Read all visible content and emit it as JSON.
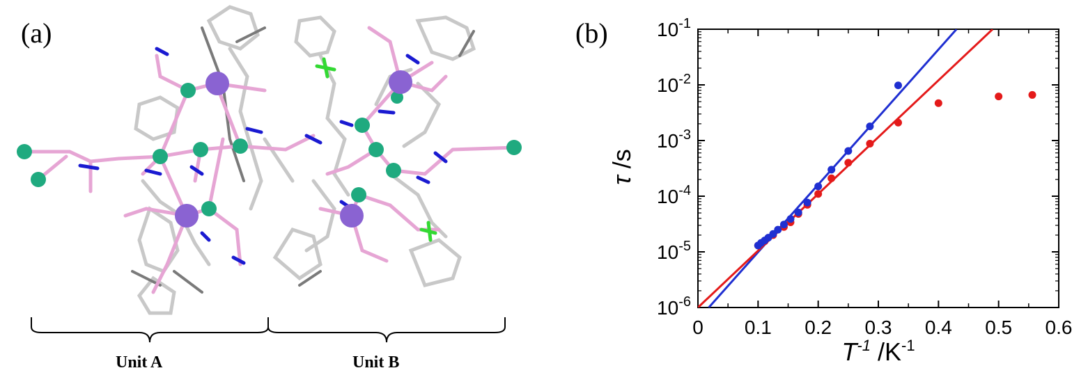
{
  "panels": {
    "a_label": "(a)",
    "b_label": "(b)"
  },
  "structure": {
    "unit_a_label": "Unit A",
    "unit_b_label": "Unit B",
    "atom_colors": {
      "metal_large": "#8a63d2",
      "metal_small": "#1faa7f",
      "oxygen": "#e6a5d4",
      "nitrogen": "#1a1ad1",
      "fluorine": "#33d933",
      "carbon": "#c8c8c8",
      "carbon_dark": "#7a7a7a"
    }
  },
  "chart_data": {
    "type": "scatter",
    "xlabel_main": "T",
    "xlabel_exp": "-1",
    "xlabel_unit": " /K",
    "xlabel_unit_exp": "-1",
    "ylabel_main": "τ",
    "ylabel_unit": " /s",
    "xlim": [
      0,
      0.6
    ],
    "ylim": [
      1e-06,
      0.1
    ],
    "yscale": "log",
    "x_ticks": [
      "0",
      "0.1",
      "0.2",
      "0.3",
      "0.4",
      "0.5",
      "0.6"
    ],
    "y_ticks": [
      {
        "base": "10",
        "exp": "-6"
      },
      {
        "base": "10",
        "exp": "-5"
      },
      {
        "base": "10",
        "exp": "-4"
      },
      {
        "base": "10",
        "exp": "-3"
      },
      {
        "base": "10",
        "exp": "-2"
      },
      {
        "base": "10",
        "exp": "-1"
      }
    ],
    "series": [
      {
        "color": "#1f2fd1",
        "points": [
          [
            0.1,
            1.3e-05
          ],
          [
            0.105,
            1.45e-05
          ],
          [
            0.111,
            1.6e-05
          ],
          [
            0.117,
            1.8e-05
          ],
          [
            0.125,
            2.1e-05
          ],
          [
            0.133,
            2.5e-05
          ],
          [
            0.143,
            3.1e-05
          ],
          [
            0.154,
            3.9e-05
          ],
          [
            0.167,
            5.1e-05
          ],
          [
            0.182,
            7.7e-05
          ],
          [
            0.2,
            0.00015
          ],
          [
            0.222,
            0.0003
          ],
          [
            0.25,
            0.00065
          ],
          [
            0.286,
            0.0018
          ],
          [
            0.333,
            0.0098
          ]
        ],
        "fit": [
          [
            0.018,
            1e-06
          ],
          [
            0.43,
            0.1
          ]
        ]
      },
      {
        "color": "#e41a1a",
        "points": [
          [
            0.1,
            1.3e-05
          ],
          [
            0.111,
            1.55e-05
          ],
          [
            0.125,
            2e-05
          ],
          [
            0.143,
            2.8e-05
          ],
          [
            0.154,
            3.4e-05
          ],
          [
            0.167,
            4.8e-05
          ],
          [
            0.182,
            7e-05
          ],
          [
            0.2,
            0.00011
          ],
          [
            0.222,
            0.00021
          ],
          [
            0.25,
            0.0004
          ],
          [
            0.286,
            0.00088
          ],
          [
            0.333,
            0.0021
          ],
          [
            0.4,
            0.0047
          ],
          [
            0.5,
            0.0062
          ],
          [
            0.556,
            0.0066
          ]
        ],
        "fit": [
          [
            0.0,
            1e-06
          ],
          [
            0.49,
            0.1
          ]
        ]
      }
    ]
  }
}
